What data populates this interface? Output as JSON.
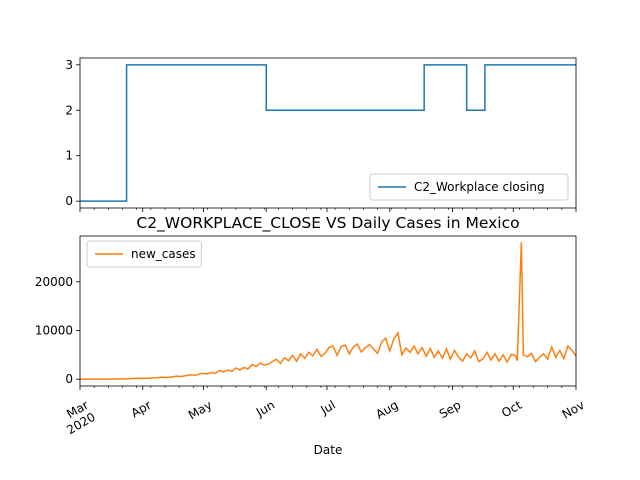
{
  "chart_data": [
    {
      "type": "line",
      "title": "",
      "xlabel": "",
      "ylabel": "",
      "ylim": [
        -0.15,
        3.15
      ],
      "yticks": [
        0,
        1,
        2,
        3
      ],
      "legend": "lower-right",
      "grid": false,
      "x_range": [
        "2020-03-01",
        "2020-11-01"
      ],
      "series": [
        {
          "name": "C2_Workplace closing",
          "color": "#1f77b4",
          "steps": [
            {
              "from": "2020-03-01",
              "value": 0
            },
            {
              "from": "2020-03-24",
              "value": 3
            },
            {
              "from": "2020-06-01",
              "value": 2
            },
            {
              "from": "2020-08-18",
              "value": 3
            },
            {
              "from": "2020-09-08",
              "value": 2
            },
            {
              "from": "2020-09-17",
              "value": 3
            },
            {
              "to": "2020-11-01"
            }
          ]
        }
      ]
    },
    {
      "type": "line",
      "title": "C2_WORKPLACE_CLOSE VS Daily Cases in Mexico",
      "xlabel": "Date",
      "ylabel": "",
      "ylim": [
        -1400,
        29400
      ],
      "yticks": [
        0,
        10000,
        20000
      ],
      "ytick_labels": [
        "0",
        "10000",
        "20000"
      ],
      "legend": "upper-left",
      "grid": false,
      "x_range": [
        "2020-03-01",
        "2020-11-01"
      ],
      "xticks": [
        "Mar\n2020",
        "Apr",
        "May",
        "Jun",
        "Jul",
        "Aug",
        "Sep",
        "Oct",
        "Nov"
      ],
      "series": [
        {
          "name": "new_cases",
          "color": "#ff7f0e",
          "points": [
            [
              "2020-03-01",
              0
            ],
            [
              "2020-03-10",
              2
            ],
            [
              "2020-03-15",
              10
            ],
            [
              "2020-03-20",
              40
            ],
            [
              "2020-03-25",
              80
            ],
            [
              "2020-03-30",
              180
            ],
            [
              "2020-04-03",
              160
            ],
            [
              "2020-04-05",
              250
            ],
            [
              "2020-04-08",
              300
            ],
            [
              "2020-04-10",
              390
            ],
            [
              "2020-04-13",
              350
            ],
            [
              "2020-04-15",
              450
            ],
            [
              "2020-04-18",
              620
            ],
            [
              "2020-04-20",
              560
            ],
            [
              "2020-04-22",
              700
            ],
            [
              "2020-04-25",
              900
            ],
            [
              "2020-04-27",
              800
            ],
            [
              "2020-04-30",
              1200
            ],
            [
              "2020-05-03",
              1100
            ],
            [
              "2020-05-05",
              1400
            ],
            [
              "2020-05-07",
              1200
            ],
            [
              "2020-05-09",
              1800
            ],
            [
              "2020-05-11",
              1500
            ],
            [
              "2020-05-13",
              1900
            ],
            [
              "2020-05-15",
              1600
            ],
            [
              "2020-05-17",
              2300
            ],
            [
              "2020-05-19",
              1900
            ],
            [
              "2020-05-21",
              2400
            ],
            [
              "2020-05-23",
              2100
            ],
            [
              "2020-05-25",
              3000
            ],
            [
              "2020-05-27",
              2600
            ],
            [
              "2020-05-29",
              3300
            ],
            [
              "2020-05-31",
              2900
            ],
            [
              "2020-06-02",
              3100
            ],
            [
              "2020-06-04",
              3600
            ],
            [
              "2020-06-06",
              4100
            ],
            [
              "2020-06-08",
              3200
            ],
            [
              "2020-06-10",
              4400
            ],
            [
              "2020-06-12",
              3800
            ],
            [
              "2020-06-14",
              4900
            ],
            [
              "2020-06-16",
              3700
            ],
            [
              "2020-06-18",
              5200
            ],
            [
              "2020-06-20",
              4300
            ],
            [
              "2020-06-22",
              5500
            ],
            [
              "2020-06-24",
              4800
            ],
            [
              "2020-06-26",
              6100
            ],
            [
              "2020-06-28",
              4700
            ],
            [
              "2020-06-30",
              5300
            ],
            [
              "2020-07-02",
              6500
            ],
            [
              "2020-07-04",
              6800
            ],
            [
              "2020-07-06",
              4900
            ],
            [
              "2020-07-08",
              6700
            ],
            [
              "2020-07-10",
              7000
            ],
            [
              "2020-07-12",
              5200
            ],
            [
              "2020-07-14",
              6600
            ],
            [
              "2020-07-16",
              7200
            ],
            [
              "2020-07-18",
              5600
            ],
            [
              "2020-07-20",
              6500
            ],
            [
              "2020-07-22",
              7100
            ],
            [
              "2020-07-24",
              6200
            ],
            [
              "2020-07-26",
              5300
            ],
            [
              "2020-07-28",
              7600
            ],
            [
              "2020-07-30",
              8400
            ],
            [
              "2020-08-01",
              5800
            ],
            [
              "2020-08-03",
              8200
            ],
            [
              "2020-08-05",
              9500
            ],
            [
              "2020-08-07",
              5000
            ],
            [
              "2020-08-09",
              6400
            ],
            [
              "2020-08-11",
              5500
            ],
            [
              "2020-08-13",
              6800
            ],
            [
              "2020-08-15",
              5200
            ],
            [
              "2020-08-17",
              6500
            ],
            [
              "2020-08-19",
              4700
            ],
            [
              "2020-08-21",
              6300
            ],
            [
              "2020-08-23",
              4500
            ],
            [
              "2020-08-25",
              5800
            ],
            [
              "2020-08-27",
              4300
            ],
            [
              "2020-08-29",
              6200
            ],
            [
              "2020-08-31",
              4100
            ],
            [
              "2020-09-02",
              5900
            ],
            [
              "2020-09-04",
              4500
            ],
            [
              "2020-09-06",
              3700
            ],
            [
              "2020-09-08",
              5200
            ],
            [
              "2020-09-10",
              4400
            ],
            [
              "2020-09-12",
              5800
            ],
            [
              "2020-09-14",
              3600
            ],
            [
              "2020-09-16",
              4200
            ],
            [
              "2020-09-18",
              5500
            ],
            [
              "2020-09-20",
              3900
            ],
            [
              "2020-09-22",
              5200
            ],
            [
              "2020-09-24",
              3700
            ],
            [
              "2020-09-26",
              5000
            ],
            [
              "2020-09-28",
              3500
            ],
            [
              "2020-09-30",
              5100
            ],
            [
              "2020-10-02",
              4900
            ],
            [
              "2020-10-03",
              3800
            ],
            [
              "2020-10-05",
              28100
            ],
            [
              "2020-10-06",
              5000
            ],
            [
              "2020-10-08",
              4600
            ],
            [
              "2020-10-10",
              5300
            ],
            [
              "2020-10-12",
              3600
            ],
            [
              "2020-10-14",
              4500
            ],
            [
              "2020-10-16",
              5200
            ],
            [
              "2020-10-18",
              4100
            ],
            [
              "2020-10-20",
              6600
            ],
            [
              "2020-10-22",
              4500
            ],
            [
              "2020-10-24",
              5900
            ],
            [
              "2020-10-26",
              4200
            ],
            [
              "2020-10-28",
              6800
            ],
            [
              "2020-10-30",
              5900
            ],
            [
              "2020-11-01",
              4800
            ]
          ]
        }
      ]
    }
  ]
}
